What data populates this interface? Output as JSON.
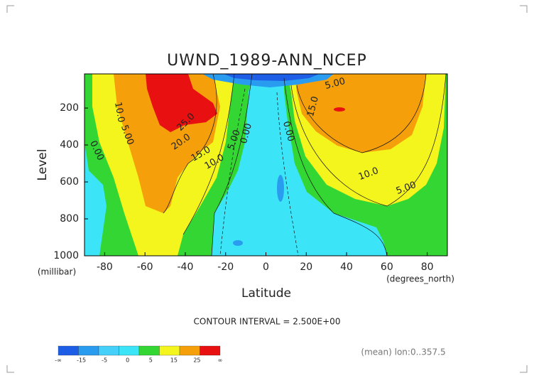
{
  "chart_data": {
    "type": "contour",
    "title": "UWND_1989-ANN_NCEP",
    "x_label": "Latitude",
    "x_unit": "(degrees_north)",
    "y_label": "Level",
    "y_unit": "(millibar)",
    "xlim": [
      -90,
      90
    ],
    "xticks": [
      -80,
      -60,
      -40,
      -20,
      0,
      20,
      40,
      60,
      80
    ],
    "ylim": [
      1000,
      15
    ],
    "yticks": [
      200,
      400,
      600,
      800,
      1000
    ],
    "contour_interval_text": "CONTOUR INTERVAL = 2.500E+00",
    "footnote": "(mean) lon:0..357.5",
    "colorbar": {
      "colors": [
        "#1e5ee6",
        "#2a9cf0",
        "#44d0f8",
        "#3ce4f8",
        "#33d633",
        "#f5f51e",
        "#f5a00a",
        "#e81010"
      ],
      "ticks": [
        "-∞",
        -15,
        -5,
        0,
        5,
        15,
        25,
        "∞"
      ]
    },
    "contour_labels": [
      {
        "value": 10,
        "label": "10.0"
      },
      {
        "value": 5,
        "label": "5.00"
      },
      {
        "value": 0,
        "label": "0.00"
      },
      {
        "value": 25,
        "label": "25.0"
      },
      {
        "value": 20,
        "label": "20.0"
      },
      {
        "value": 15,
        "label": "15.0"
      },
      {
        "value": 10,
        "label": "10.0"
      },
      {
        "value": 5,
        "label": "5.00"
      },
      {
        "value": 0,
        "label": "0.00"
      },
      {
        "value": 0,
        "label": "0.00"
      },
      {
        "value": 5,
        "label": "5.00"
      },
      {
        "value": 15,
        "label": "15.0"
      },
      {
        "value": 10,
        "label": "10.0"
      },
      {
        "value": 5,
        "label": "5.00"
      }
    ]
  }
}
